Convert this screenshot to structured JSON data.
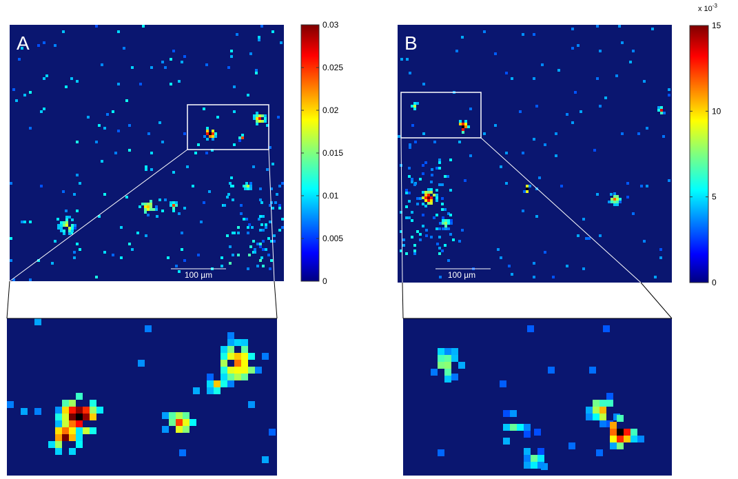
{
  "panels": [
    {
      "label": "A",
      "scale_bar": "100 µm",
      "colorbar": {
        "ticks": [
          "0",
          "0.005",
          "0.01",
          "0.015",
          "0.02",
          "0.025",
          "0.03"
        ]
      }
    },
    {
      "label": "B",
      "scale_bar": "100 µm",
      "colorbar": {
        "multiplier": "x 10",
        "exponent": "-3",
        "ticks": [
          "0",
          "5",
          "10",
          "15"
        ]
      }
    }
  ]
}
